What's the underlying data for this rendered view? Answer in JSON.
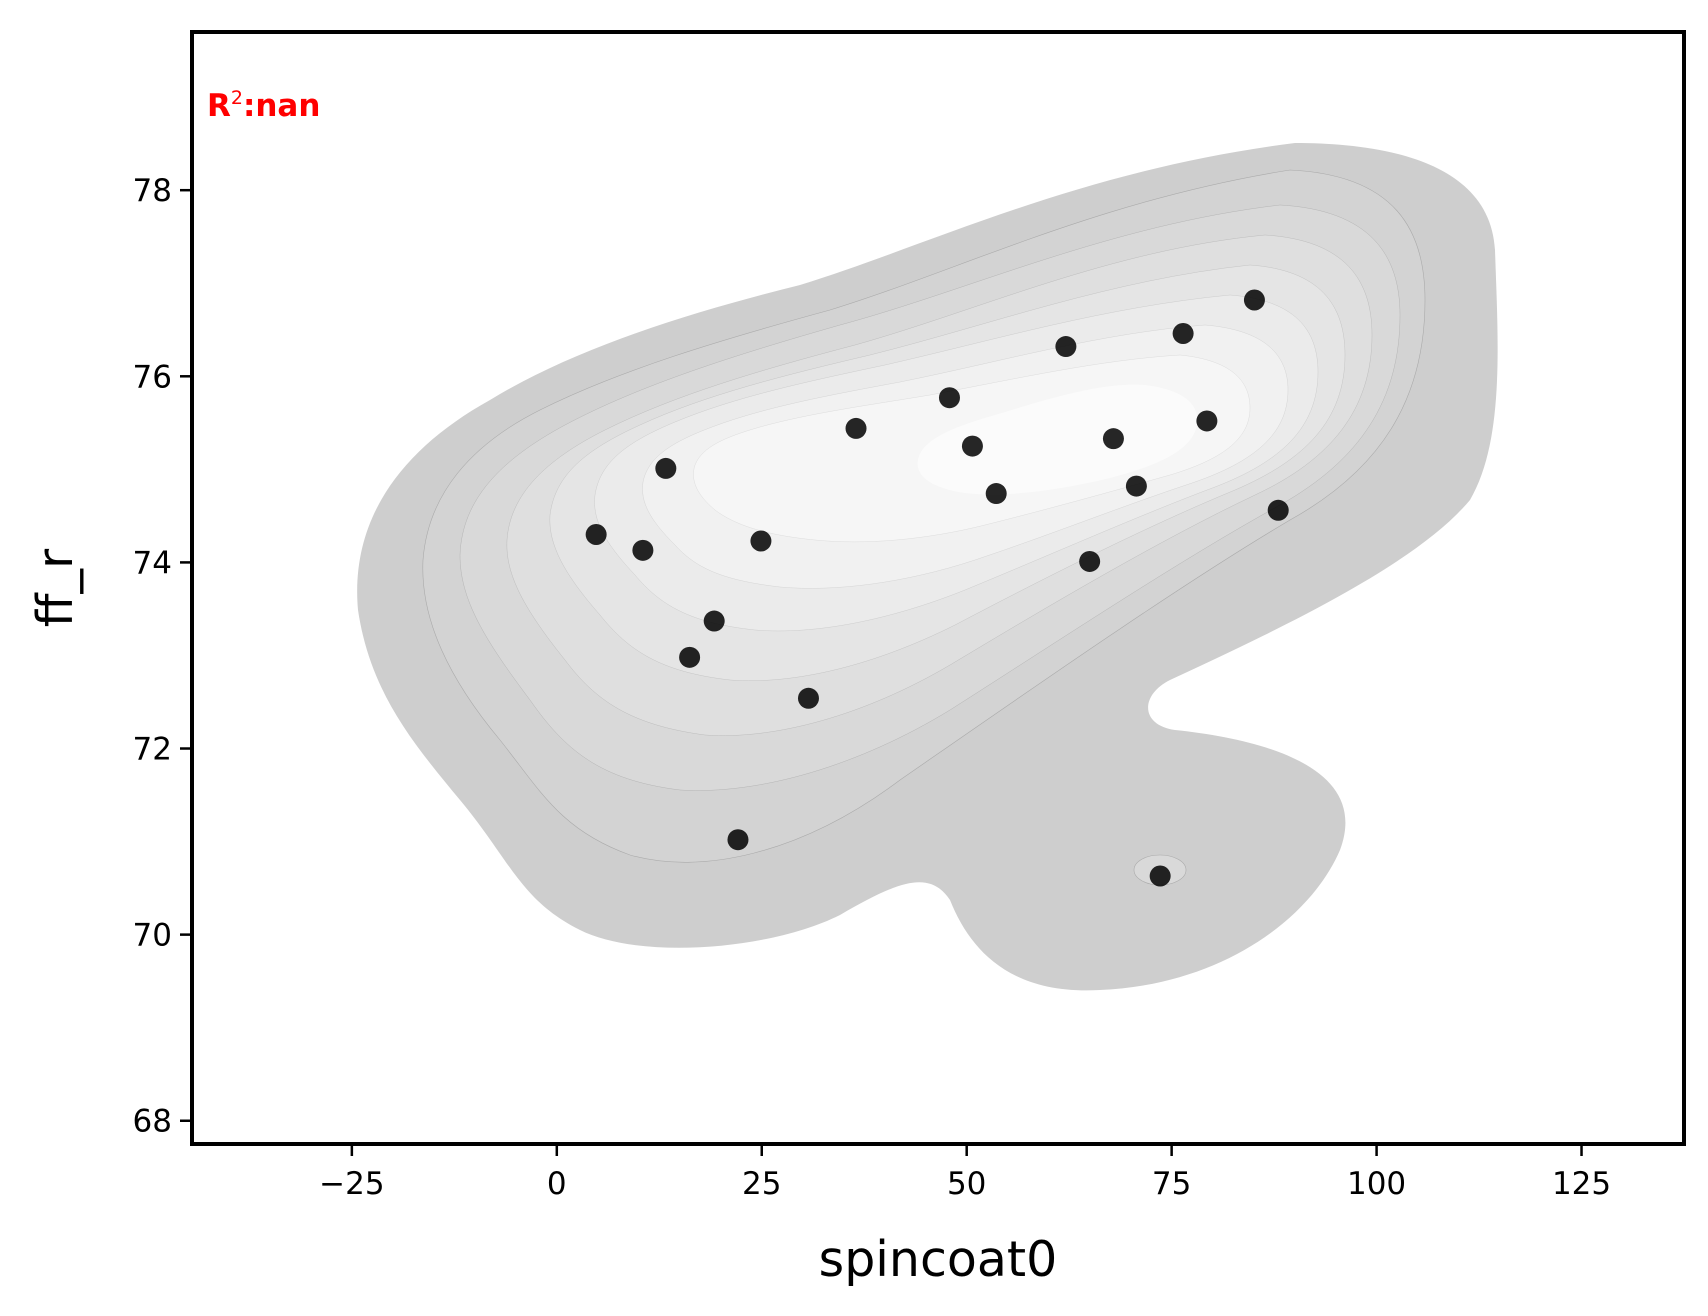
{
  "chart_data": {
    "type": "scatter",
    "title": "",
    "xlabel": "spincoat0",
    "ylabel": "ff_r",
    "xlim": [
      -44.5,
      137.5
    ],
    "ylim": [
      67.75,
      79.7
    ],
    "x_ticks": [
      -25,
      0,
      25,
      50,
      75,
      100,
      125
    ],
    "x_tick_labels": [
      "−25",
      "0",
      "25",
      "50",
      "75",
      "100",
      "125"
    ],
    "y_ticks": [
      68,
      70,
      72,
      74,
      76,
      78
    ],
    "y_tick_labels": [
      "68",
      "70",
      "72",
      "74",
      "76",
      "78"
    ],
    "grid": false,
    "legend": null,
    "annotation": {
      "prefix": "R",
      "superscript": "2",
      "suffix": ":nan",
      "color": "#ff0000",
      "placement": "top-left"
    },
    "density_background": "grayscale KDE contours (darker = lower density, white = peak)",
    "point_color": "#000000",
    "points": [
      {
        "x": 4.8,
        "y": 74.3
      },
      {
        "x": 10.5,
        "y": 74.13
      },
      {
        "x": 13.3,
        "y": 75.01
      },
      {
        "x": 16.2,
        "y": 72.98
      },
      {
        "x": 19.2,
        "y": 73.37
      },
      {
        "x": 24.9,
        "y": 74.23
      },
      {
        "x": 30.7,
        "y": 72.54
      },
      {
        "x": 22.1,
        "y": 71.02
      },
      {
        "x": 36.5,
        "y": 75.44
      },
      {
        "x": 47.9,
        "y": 75.77
      },
      {
        "x": 50.7,
        "y": 75.25
      },
      {
        "x": 53.6,
        "y": 74.74
      },
      {
        "x": 62.1,
        "y": 76.32
      },
      {
        "x": 65.0,
        "y": 74.01
      },
      {
        "x": 67.9,
        "y": 75.33
      },
      {
        "x": 70.7,
        "y": 74.82
      },
      {
        "x": 73.6,
        "y": 70.63
      },
      {
        "x": 76.4,
        "y": 76.46
      },
      {
        "x": 79.3,
        "y": 75.52
      },
      {
        "x": 85.1,
        "y": 76.82
      },
      {
        "x": 88.0,
        "y": 74.56
      }
    ]
  }
}
